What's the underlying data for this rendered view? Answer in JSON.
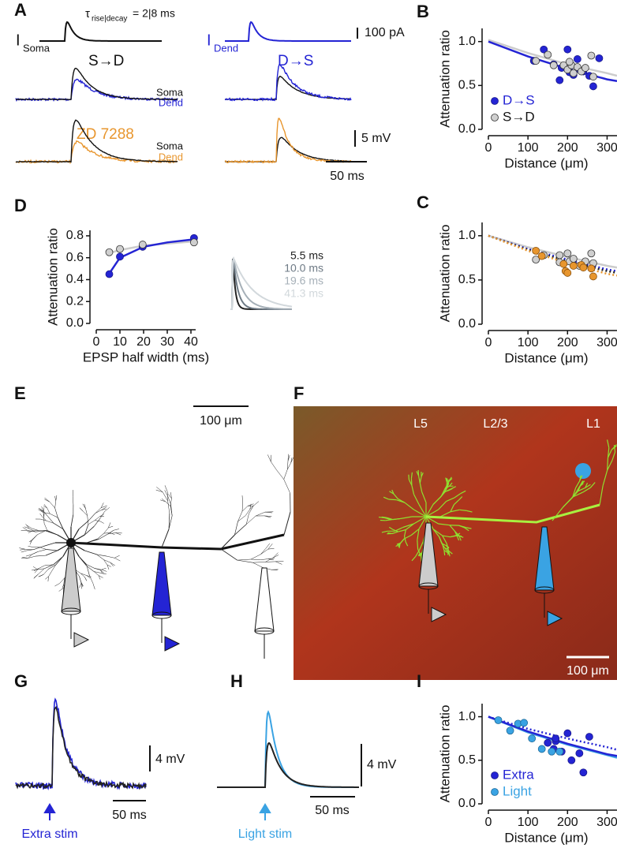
{
  "chart_data": [
    {
      "type": "scatter",
      "panel": "B",
      "xlabel": "Distance (μm)",
      "ylabel": "Attenuation ratio",
      "xlim": [
        0,
        325
      ],
      "xticks": [
        0,
        100,
        200,
        300
      ],
      "ylim": [
        0,
        1.15
      ],
      "yticks": [
        {
          "value": 0,
          "label": "0.0"
        },
        {
          "value": 0.5,
          "label": "0.5"
        },
        {
          "value": 1,
          "label": "1.0"
        }
      ],
      "legend": "lower left",
      "series": [
        {
          "name": "D→S",
          "color": "#2424d4",
          "edgecolor": "#1a1a8a",
          "x": [
            115,
            140,
            165,
            185,
            200,
            205,
            215,
            225,
            240,
            255,
            265,
            280,
            180
          ],
          "values": [
            0.78,
            0.91,
            0.74,
            0.7,
            0.91,
            0.65,
            0.62,
            0.8,
            0.66,
            0.61,
            0.49,
            0.81,
            0.56
          ]
        },
        {
          "name": "S→D",
          "color": "#cfcfcf",
          "edgecolor": "#333333",
          "x": [
            120,
            150,
            165,
            190,
            200,
            210,
            215,
            225,
            235,
            245,
            260,
            265,
            205
          ],
          "values": [
            0.78,
            0.85,
            0.73,
            0.73,
            0.68,
            0.73,
            0.64,
            0.71,
            0.66,
            0.7,
            0.84,
            0.6,
            0.77
          ]
        }
      ],
      "fits": [
        {
          "color": "#cccccc",
          "style": "solid",
          "x": [
            0,
            100,
            200,
            300,
            325
          ],
          "values": [
            1.02,
            0.87,
            0.74,
            0.64,
            0.61
          ]
        },
        {
          "color": "#2424d4",
          "style": "solid",
          "x": [
            0,
            100,
            200,
            300,
            325
          ],
          "values": [
            1.0,
            0.83,
            0.69,
            0.57,
            0.55
          ]
        }
      ]
    },
    {
      "type": "scatter",
      "panel": "C",
      "xlabel": "Distance (μm)",
      "ylabel": "Attenuation ratio",
      "xlim": [
        0,
        325
      ],
      "xticks": [
        0,
        100,
        200,
        300
      ],
      "ylim": [
        0,
        1.15
      ],
      "yticks": [
        {
          "value": 0,
          "label": "0.0"
        },
        {
          "value": 0.5,
          "label": "0.5"
        },
        {
          "value": 1,
          "label": "1.0"
        }
      ],
      "series": [
        {
          "color": "#cfcfcf",
          "edgecolor": "#333333",
          "x": [
            120,
            140,
            180,
            200,
            205,
            215,
            230,
            245,
            260,
            265,
            180
          ],
          "values": [
            0.73,
            0.78,
            0.78,
            0.8,
            0.71,
            0.74,
            0.66,
            0.71,
            0.8,
            0.69,
            0.7
          ]
        },
        {
          "color": "#e8962e",
          "edgecolor": "#8a5210",
          "x": [
            120,
            135,
            190,
            195,
            200,
            215,
            235,
            260,
            265,
            240
          ],
          "values": [
            0.83,
            0.77,
            0.68,
            0.6,
            0.58,
            0.66,
            0.67,
            0.63,
            0.54,
            0.64
          ]
        }
      ],
      "fits": [
        {
          "color": "#cccccc",
          "style": "solid",
          "x": [
            0,
            100,
            200,
            300,
            325
          ],
          "values": [
            1.0,
            0.87,
            0.76,
            0.66,
            0.64
          ]
        },
        {
          "color": "#2424d4",
          "style": "dotted",
          "x": [
            0,
            100,
            200,
            300,
            325
          ],
          "values": [
            1.0,
            0.85,
            0.73,
            0.62,
            0.6
          ]
        },
        {
          "color": "#222222",
          "style": "dotted",
          "x": [
            0,
            100,
            200,
            300,
            325
          ],
          "values": [
            1.0,
            0.84,
            0.71,
            0.6,
            0.58
          ]
        },
        {
          "color": "#e8962e",
          "style": "dotted",
          "x": [
            0,
            100,
            200,
            300,
            325
          ],
          "values": [
            1.0,
            0.83,
            0.69,
            0.57,
            0.55
          ]
        }
      ]
    },
    {
      "type": "scatter",
      "panel": "D",
      "xlabel": "EPSP half width (ms)",
      "ylabel": "Attenuation ratio",
      "xlim": [
        0,
        42
      ],
      "xticks": [
        0,
        10,
        20,
        30,
        40
      ],
      "ylim": [
        0,
        0.85
      ],
      "yticks": [
        {
          "value": 0,
          "label": "0.0"
        },
        {
          "value": 0.2,
          "label": "0.2"
        },
        {
          "value": 0.4,
          "label": "0.4"
        },
        {
          "value": 0.6,
          "label": "0.6"
        },
        {
          "value": 0.8,
          "label": "0.8"
        }
      ],
      "series": [
        {
          "color": "#2424d4",
          "edgecolor": "#1a1a8a",
          "x": [
            5.5,
            10,
            19.6,
            41.3
          ],
          "values": [
            0.45,
            0.61,
            0.7,
            0.78
          ]
        },
        {
          "color": "#cfcfcf",
          "edgecolor": "#333333",
          "x": [
            5.5,
            10,
            19.6,
            41.3
          ],
          "values": [
            0.65,
            0.68,
            0.72,
            0.74
          ]
        }
      ],
      "fits": [
        {
          "color": "#cccccc",
          "style": "solid",
          "x": [
            5,
            10,
            20,
            30,
            42
          ],
          "values": [
            0.64,
            0.67,
            0.71,
            0.73,
            0.75
          ]
        },
        {
          "color": "#2424d4",
          "style": "solid",
          "x": [
            5,
            10,
            20,
            30,
            42
          ],
          "values": [
            0.44,
            0.6,
            0.7,
            0.74,
            0.77
          ]
        }
      ],
      "waveforms": [
        {
          "label": "5.5 ms",
          "color": "#222222"
        },
        {
          "label": "10.0 ms",
          "color": "#6e7a85"
        },
        {
          "label": "19.6 ms",
          "color": "#a6b0b8"
        },
        {
          "label": "41.3 ms",
          "color": "#d2d8dc"
        }
      ]
    },
    {
      "type": "scatter",
      "panel": "I",
      "xlabel": "Distance (μm)",
      "ylabel": "Attenuation ratio",
      "xlim": [
        0,
        325
      ],
      "xticks": [
        0,
        100,
        200,
        300
      ],
      "ylim": [
        0,
        1.15
      ],
      "yticks": [
        {
          "value": 0,
          "label": "0.0"
        },
        {
          "value": 0.5,
          "label": "0.5"
        },
        {
          "value": 1,
          "label": "1.0"
        }
      ],
      "legend": "lower left",
      "series": [
        {
          "name": "Extra",
          "color": "#2424d4",
          "edgecolor": "#1a1a8a",
          "x": [
            150,
            165,
            170,
            185,
            200,
            210,
            230,
            240,
            255,
            170
          ],
          "values": [
            0.7,
            0.63,
            0.72,
            0.6,
            0.81,
            0.5,
            0.58,
            0.36,
            0.77,
            0.75
          ]
        },
        {
          "name": "Light",
          "color": "#3aa3e3",
          "edgecolor": "#1d6a99",
          "x": [
            25,
            55,
            75,
            90,
            110,
            135,
            160,
            180
          ],
          "values": [
            0.96,
            0.84,
            0.92,
            0.93,
            0.75,
            0.63,
            0.6,
            0.6
          ]
        }
      ],
      "fits": [
        {
          "color": "#3aa3e3",
          "style": "solid",
          "x": [
            0,
            100,
            200,
            300,
            325
          ],
          "values": [
            1.0,
            0.82,
            0.68,
            0.56,
            0.53
          ]
        },
        {
          "color": "#2424d4",
          "style": "solid",
          "x": [
            0,
            100,
            200,
            300,
            325
          ],
          "values": [
            1.0,
            0.83,
            0.69,
            0.57,
            0.55
          ]
        },
        {
          "color": "#2424d4",
          "style": "dotted",
          "x": [
            0,
            100,
            200,
            300,
            325
          ],
          "values": [
            1.0,
            0.86,
            0.75,
            0.65,
            0.62
          ]
        }
      ]
    }
  ],
  "panels": {
    "letters": [
      "A",
      "B",
      "C",
      "D",
      "E",
      "F",
      "G",
      "H",
      "I"
    ],
    "a": {
      "tau": "τ",
      "tau_sub": "rise|decay",
      "tau_vals": "= 2|8 ms",
      "i": "I",
      "soma_sub": "Soma",
      "dend_sub": "Dend",
      "scale_current": "100 pA",
      "s_to_d": "S→D",
      "d_to_s": "D→S",
      "soma": "Soma",
      "dend": "Dend",
      "zd": "ZD 7288",
      "scale_voltage": "5 mV",
      "scale_time": "50 ms"
    },
    "e": {
      "scale": "100 μm"
    },
    "f": {
      "layers": [
        "L5",
        "L2/3",
        "L1"
      ],
      "scale": "100 μm"
    },
    "g": {
      "scale_voltage": "4 mV",
      "scale_time": "50 ms",
      "stim": "Extra stim"
    },
    "h": {
      "scale_voltage": "4 mV",
      "scale_time": "50 ms",
      "stim": "Light stim"
    }
  }
}
